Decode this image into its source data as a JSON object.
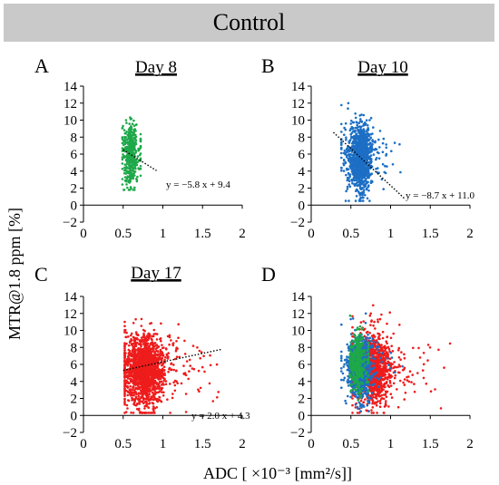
{
  "header": {
    "title": "Control"
  },
  "chart_data": {
    "type": "scatter",
    "xlabel": "ADC [ ×10⁻³ [mm²/s]]",
    "ylabel": "MTR@1.8 ppm [%]",
    "xlim": [
      0,
      2
    ],
    "ylim": [
      -2,
      14
    ],
    "xticks": [
      "0",
      "0.5",
      "1",
      "1.5",
      "2"
    ],
    "yticks": [
      "−2",
      "0",
      "2",
      "4",
      "6",
      "8",
      "10",
      "12",
      "14"
    ],
    "colors": {
      "day8": "#1fa84a",
      "day10": "#1c6fc4",
      "day17": "#ee1c1c",
      "fit": "#000000"
    },
    "panels": [
      {
        "label": "A",
        "title": "Day 8",
        "series": [
          {
            "key": "day8",
            "color": "#1fa84a",
            "n": 450,
            "cluster": {
              "x_center": 0.58,
              "x_spread": 0.045,
              "x_min": 0.49,
              "x_max": 0.72,
              "y_center": 6.0,
              "y_spread": 1.7,
              "y_min": 1.8,
              "y_max": 12.4
            }
          }
        ],
        "fit": {
          "slope": -5.8,
          "intercept": 9.4,
          "x_range": [
            0.5,
            0.92
          ],
          "equation": "y = −5.8 x + 9.4"
        }
      },
      {
        "label": "B",
        "title": "Day 10",
        "series": [
          {
            "key": "day10",
            "color": "#1c6fc4",
            "n": 1400,
            "cluster": {
              "x_center": 0.6,
              "x_spread": 0.07,
              "x_min": 0.38,
              "x_max": 1.15,
              "y_center": 5.6,
              "y_spread": 1.8,
              "y_min": 0.5,
              "y_max": 12.0
            }
          }
        ],
        "fit": {
          "slope": -8.7,
          "intercept": 11.0,
          "x_range": [
            0.28,
            1.18
          ],
          "equation": "y = −8.7 x + 11.0"
        }
      },
      {
        "label": "C",
        "title": "Day 17",
        "series": [
          {
            "key": "day17",
            "color": "#ee1c1c",
            "n": 1700,
            "cluster": {
              "x_center": 0.74,
              "x_spread": 0.13,
              "x_min": 0.52,
              "x_max": 1.75,
              "y_center": 5.4,
              "y_spread": 2.0,
              "y_min": 0.3,
              "y_max": 13.3
            }
          }
        ],
        "fit": {
          "slope": 2.0,
          "intercept": 4.3,
          "x_range": [
            0.5,
            1.75
          ],
          "equation": "y = 2.0 x + 4.3"
        }
      },
      {
        "label": "D",
        "title": "",
        "series": [
          {
            "key": "day17",
            "color": "#ee1c1c",
            "n": 1300,
            "cluster": {
              "x_center": 0.74,
              "x_spread": 0.13,
              "x_min": 0.52,
              "x_max": 1.75,
              "y_center": 5.4,
              "y_spread": 2.0,
              "y_min": 0.3,
              "y_max": 13.3
            }
          },
          {
            "key": "day10",
            "color": "#1c6fc4",
            "n": 900,
            "cluster": {
              "x_center": 0.6,
              "x_spread": 0.07,
              "x_min": 0.38,
              "x_max": 1.15,
              "y_center": 5.6,
              "y_spread": 1.8,
              "y_min": 0.5,
              "y_max": 12.0
            }
          },
          {
            "key": "day8",
            "color": "#1fa84a",
            "n": 420,
            "cluster": {
              "x_center": 0.57,
              "x_spread": 0.045,
              "x_min": 0.49,
              "x_max": 0.72,
              "y_center": 6.2,
              "y_spread": 1.7,
              "y_min": 1.8,
              "y_max": 12.4
            }
          }
        ],
        "fit": null
      }
    ]
  }
}
